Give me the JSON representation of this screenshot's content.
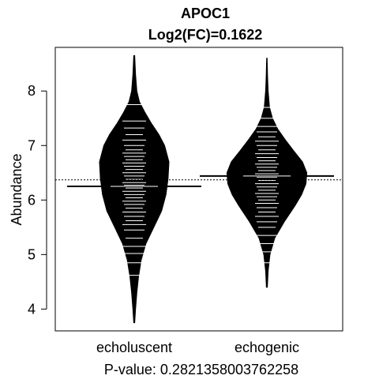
{
  "chart_data": {
    "type": "beanplot",
    "title": "APOC1",
    "subtitle": "Log2(FC)=0.1622",
    "xlabel": "",
    "ylabel": "Abundance",
    "footer": "P-value: 0.2821358003762258",
    "categories": [
      "echoluscent",
      "echogenic"
    ],
    "ylim": [
      3.6,
      8.8
    ],
    "yticks": [
      "4",
      "5",
      "6",
      "7",
      "8"
    ],
    "overall_mean": 6.37,
    "grid": false,
    "groups": [
      {
        "name": "echoluscent",
        "group_mean": 6.25,
        "range": [
          3.75,
          8.65
        ],
        "density": [
          [
            3.75,
            0.01
          ],
          [
            4.0,
            0.03
          ],
          [
            4.3,
            0.06
          ],
          [
            4.6,
            0.1
          ],
          [
            4.9,
            0.16
          ],
          [
            5.2,
            0.27
          ],
          [
            5.5,
            0.45
          ],
          [
            5.8,
            0.63
          ],
          [
            6.1,
            0.73
          ],
          [
            6.4,
            0.78
          ],
          [
            6.7,
            0.8
          ],
          [
            7.0,
            0.7
          ],
          [
            7.2,
            0.57
          ],
          [
            7.4,
            0.4
          ],
          [
            7.6,
            0.25
          ],
          [
            7.8,
            0.12
          ],
          [
            8.0,
            0.06
          ],
          [
            8.3,
            0.03
          ],
          [
            8.65,
            0.01
          ]
        ],
        "points": [
          4.62,
          4.85,
          5.02,
          5.15,
          5.3,
          5.45,
          5.55,
          5.62,
          5.7,
          5.78,
          5.85,
          5.92,
          5.98,
          6.04,
          6.1,
          6.16,
          6.22,
          6.27,
          6.32,
          6.38,
          6.44,
          6.5,
          6.56,
          6.62,
          6.68,
          6.74,
          6.8,
          6.86,
          6.92,
          7.0,
          7.1,
          7.2,
          7.32,
          7.45,
          7.75
        ]
      },
      {
        "name": "echogenic",
        "group_mean": 6.44,
        "range": [
          4.4,
          8.6
        ],
        "density": [
          [
            4.4,
            0.01
          ],
          [
            4.7,
            0.03
          ],
          [
            5.0,
            0.07
          ],
          [
            5.3,
            0.18
          ],
          [
            5.6,
            0.4
          ],
          [
            5.9,
            0.65
          ],
          [
            6.1,
            0.8
          ],
          [
            6.3,
            0.9
          ],
          [
            6.5,
            0.92
          ],
          [
            6.7,
            0.82
          ],
          [
            6.9,
            0.62
          ],
          [
            7.1,
            0.43
          ],
          [
            7.3,
            0.25
          ],
          [
            7.5,
            0.13
          ],
          [
            7.7,
            0.06
          ],
          [
            8.0,
            0.03
          ],
          [
            8.3,
            0.015
          ],
          [
            8.6,
            0.005
          ]
        ],
        "points": [
          4.85,
          5.05,
          5.2,
          5.35,
          5.5,
          5.6,
          5.7,
          5.78,
          5.86,
          5.94,
          6.0,
          6.06,
          6.12,
          6.18,
          6.24,
          6.3,
          6.36,
          6.42,
          6.48,
          6.54,
          6.6,
          6.66,
          6.72,
          6.78,
          6.85,
          6.92,
          7.0,
          7.08,
          7.16,
          7.25,
          7.35,
          7.5,
          7.7
        ]
      }
    ]
  }
}
